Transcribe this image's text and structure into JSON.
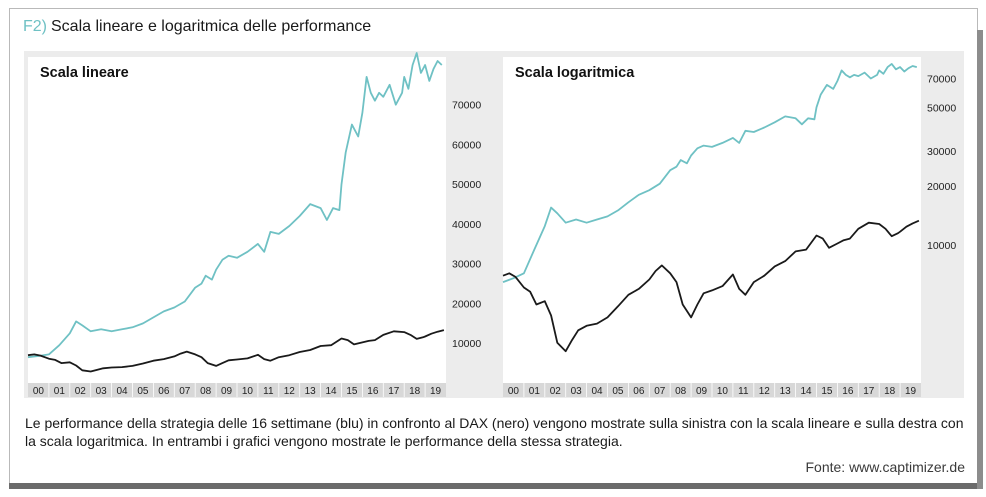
{
  "figure": {
    "label": "F2)",
    "title": "Scala lineare e logaritmica delle performance",
    "caption": "Le performance della strategia delle 16 settimane (blu) in confronto al DAX (nero) vengono mostrate sulla sinistra con la scala lineare e sulla destra con la scala logaritmica. In entrambi i grafici vengono mostrate le performance della stessa strategia.",
    "source": "Fonte: www.captimizer.de"
  },
  "colors": {
    "strategy": "#6fc1c4",
    "dax": "#1a1a1a",
    "label": "#6fc1c4",
    "panel_background": "#ececec",
    "plot_background": "#ffffff"
  },
  "chart_data": [
    {
      "type": "line",
      "title": "Scala lineare",
      "yscale": "linear",
      "ylim": [
        0,
        82000
      ],
      "yticks": [
        "10000",
        "20000",
        "30000",
        "40000",
        "50000",
        "60000",
        "70000"
      ],
      "x_tick_labels": [
        "00",
        "01",
        "02",
        "03",
        "04",
        "05",
        "06",
        "07",
        "08",
        "09",
        "10",
        "11",
        "12",
        "13",
        "14",
        "15",
        "16",
        "17",
        "18",
        "19"
      ],
      "series": [
        {
          "color": "#6fc1c4",
          "x": [
            2000,
            2000.5,
            2001,
            2001.5,
            2002,
            2002.3,
            2002.6,
            2003,
            2003.5,
            2004,
            2004.5,
            2005,
            2005.5,
            2006,
            2006.5,
            2007,
            2007.5,
            2008,
            2008.3,
            2008.5,
            2008.8,
            2009,
            2009.3,
            2009.6,
            2010,
            2010.5,
            2011,
            2011.3,
            2011.6,
            2012,
            2012.5,
            2013,
            2013.5,
            2014,
            2014.3,
            2014.6,
            2014.9,
            2015,
            2015.2,
            2015.5,
            2015.8,
            2016,
            2016.2,
            2016.4,
            2016.6,
            2016.8,
            2017,
            2017.3,
            2017.6,
            2017.9,
            2018,
            2018.2,
            2018.4,
            2018.6,
            2018.8,
            2019,
            2019.2,
            2019.4,
            2019.6,
            2019.8
          ],
          "y": [
            6500,
            6800,
            7200,
            9500,
            12500,
            15500,
            14500,
            13000,
            13500,
            13000,
            13500,
            14000,
            15000,
            16500,
            18000,
            19000,
            20500,
            24000,
            25000,
            27000,
            26000,
            28500,
            31000,
            32000,
            31500,
            33000,
            35000,
            33000,
            38000,
            37500,
            39500,
            42000,
            45000,
            44000,
            41000,
            44000,
            43500,
            50000,
            58000,
            65000,
            62000,
            68000,
            77000,
            73000,
            71000,
            73000,
            72000,
            75000,
            70000,
            73000,
            77000,
            74000,
            80000,
            83000,
            78000,
            80000,
            76000,
            79000,
            81000,
            80000
          ]
        },
        {
          "color": "#1a1a1a",
          "x": [
            2000,
            2000.3,
            2000.6,
            2001,
            2001.3,
            2001.6,
            2002,
            2002.3,
            2002.6,
            2003,
            2003.3,
            2003.6,
            2004,
            2004.5,
            2005,
            2005.5,
            2006,
            2006.5,
            2007,
            2007.3,
            2007.6,
            2008,
            2008.3,
            2008.6,
            2009,
            2009.3,
            2009.6,
            2010,
            2010.5,
            2011,
            2011.3,
            2011.6,
            2012,
            2012.5,
            2013,
            2013.5,
            2014,
            2014.5,
            2015,
            2015.3,
            2015.6,
            2016,
            2016.3,
            2016.6,
            2017,
            2017.5,
            2018,
            2018.3,
            2018.6,
            2018.9,
            2019,
            2019.3,
            2019.6,
            2019.9
          ],
          "y": [
            7000,
            7200,
            6900,
            6100,
            5800,
            5000,
            5200,
            4400,
            3200,
            2900,
            3300,
            3700,
            3900,
            4000,
            4300,
            4900,
            5600,
            6000,
            6700,
            7400,
            7900,
            7200,
            6500,
            5000,
            4300,
            5000,
            5700,
            5900,
            6200,
            7100,
            6000,
            5600,
            6500,
            7000,
            7800,
            8300,
            9300,
            9500,
            11200,
            10800,
            9700,
            10200,
            10600,
            10800,
            12100,
            13000,
            12800,
            12100,
            11100,
            11500,
            11700,
            12400,
            12900,
            13300
          ]
        }
      ]
    },
    {
      "type": "line",
      "title": "Scala logaritmica",
      "yscale": "log",
      "ylim": [
        2000,
        90000
      ],
      "yticks": [
        "10000",
        "20000",
        "30000",
        "50000",
        "70000"
      ],
      "x_tick_labels": [
        "00",
        "01",
        "02",
        "03",
        "04",
        "05",
        "06",
        "07",
        "08",
        "09",
        "10",
        "11",
        "12",
        "13",
        "14",
        "15",
        "16",
        "17",
        "18",
        "19"
      ],
      "series": [
        {
          "color": "#6fc1c4",
          "x": [
            2000,
            2000.5,
            2001,
            2001.5,
            2002,
            2002.3,
            2002.6,
            2003,
            2003.5,
            2004,
            2004.5,
            2005,
            2005.5,
            2006,
            2006.5,
            2007,
            2007.5,
            2008,
            2008.3,
            2008.5,
            2008.8,
            2009,
            2009.3,
            2009.6,
            2010,
            2010.5,
            2011,
            2011.3,
            2011.6,
            2012,
            2012.5,
            2013,
            2013.5,
            2014,
            2014.3,
            2014.6,
            2014.9,
            2015,
            2015.2,
            2015.5,
            2015.8,
            2016,
            2016.2,
            2016.4,
            2016.6,
            2016.8,
            2017,
            2017.3,
            2017.6,
            2017.9,
            2018,
            2018.2,
            2018.4,
            2018.6,
            2018.8,
            2019,
            2019.2,
            2019.4,
            2019.6,
            2019.8
          ],
          "y": [
            6500,
            6800,
            7200,
            9500,
            12500,
            15500,
            14500,
            13000,
            13500,
            13000,
            13500,
            14000,
            15000,
            16500,
            18000,
            19000,
            20500,
            24000,
            25000,
            27000,
            26000,
            28500,
            31000,
            32000,
            31500,
            33000,
            35000,
            33000,
            38000,
            37500,
            39500,
            42000,
            45000,
            44000,
            41000,
            44000,
            43500,
            50000,
            58000,
            65000,
            62000,
            68000,
            77000,
            73000,
            71000,
            73000,
            72000,
            75000,
            70000,
            73000,
            77000,
            74000,
            80000,
            83000,
            78000,
            80000,
            76000,
            79000,
            81000,
            80000
          ]
        },
        {
          "color": "#1a1a1a",
          "x": [
            2000,
            2000.3,
            2000.6,
            2001,
            2001.3,
            2001.6,
            2002,
            2002.3,
            2002.6,
            2003,
            2003.3,
            2003.6,
            2004,
            2004.5,
            2005,
            2005.5,
            2006,
            2006.5,
            2007,
            2007.3,
            2007.6,
            2008,
            2008.3,
            2008.6,
            2009,
            2009.3,
            2009.6,
            2010,
            2010.5,
            2011,
            2011.3,
            2011.6,
            2012,
            2012.5,
            2013,
            2013.5,
            2014,
            2014.5,
            2015,
            2015.3,
            2015.6,
            2016,
            2016.3,
            2016.6,
            2017,
            2017.5,
            2018,
            2018.3,
            2018.6,
            2018.9,
            2019,
            2019.3,
            2019.6,
            2019.9
          ],
          "y": [
            7000,
            7200,
            6900,
            6100,
            5800,
            5000,
            5200,
            4400,
            3200,
            2900,
            3300,
            3700,
            3900,
            4000,
            4300,
            4900,
            5600,
            6000,
            6700,
            7400,
            7900,
            7200,
            6500,
            5000,
            4300,
            5000,
            5700,
            5900,
            6200,
            7100,
            6000,
            5600,
            6500,
            7000,
            7800,
            8300,
            9300,
            9500,
            11200,
            10800,
            9700,
            10200,
            10600,
            10800,
            12100,
            13000,
            12800,
            12100,
            11100,
            11500,
            11700,
            12400,
            12900,
            13300
          ]
        }
      ]
    }
  ]
}
